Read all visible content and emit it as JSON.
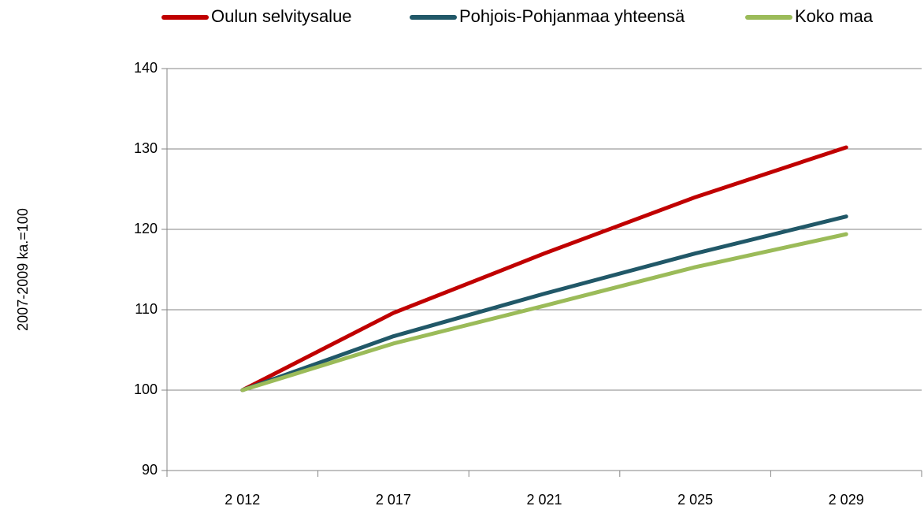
{
  "chart_data": {
    "type": "line",
    "y_label": "2007-2009 ka.=100",
    "categories": [
      "2 012",
      "2 017",
      "2 021",
      "2 025",
      "2 029"
    ],
    "series": [
      {
        "name": "Oulun selvitysalue",
        "color": "#c00000",
        "values": [
          100,
          109.6,
          117,
          124,
          130.2
        ]
      },
      {
        "name": "Pohjois-Pohjanmaa yhteensä",
        "color": "#215868",
        "values": [
          100,
          106.7,
          112,
          117,
          121.6
        ]
      },
      {
        "name": "Koko maa",
        "color": "#9bbb59",
        "values": [
          100,
          105.8,
          110.5,
          115.3,
          119.4
        ]
      }
    ],
    "ylim": [
      90,
      140
    ],
    "yticks": [
      90,
      100,
      110,
      120,
      130,
      140
    ],
    "grid": true,
    "legend": "top"
  }
}
